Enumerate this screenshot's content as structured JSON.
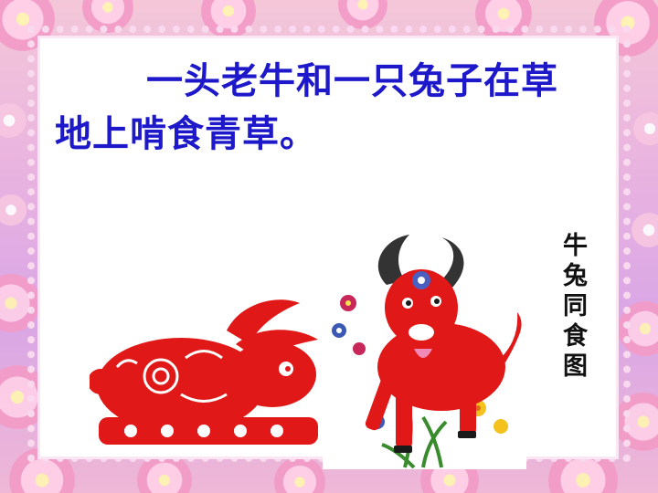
{
  "slide": {
    "headline": "一头老牛和一只兔子在草地上啃食青草。",
    "vertical_caption": "牛兔同食图"
  },
  "images": {
    "rabbit": "red-paper-cut-rabbit",
    "ox": "red-paper-cut-ox-with-flowers"
  },
  "colors": {
    "headline": "#1d18c9",
    "papercut_red": "#e01818",
    "border_pink": "#f39ac6"
  }
}
